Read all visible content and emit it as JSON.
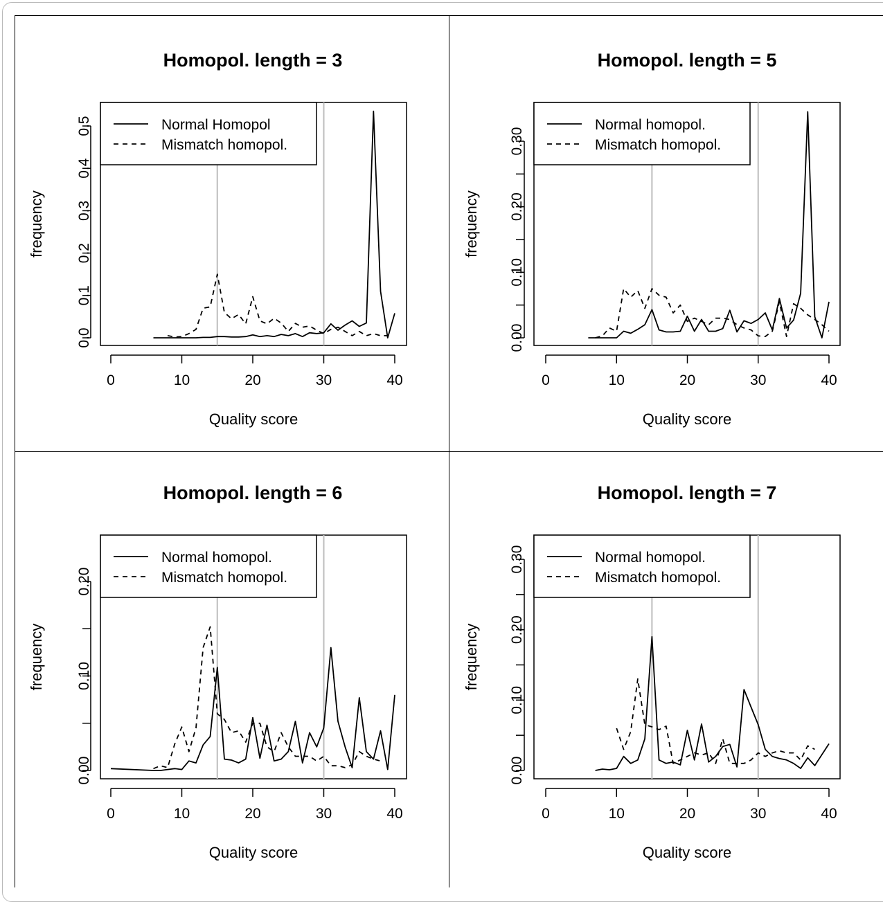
{
  "chart_data": [
    {
      "type": "line",
      "title": "Homopol. length = 3",
      "xlabel": "Quality score",
      "ylabel": "frequency",
      "xlim": [
        0,
        40
      ],
      "ylim": [
        0,
        0.55
      ],
      "xticks": [
        0,
        10,
        20,
        30,
        40
      ],
      "yticks": [
        0.0,
        0.1,
        0.2,
        0.3,
        0.4,
        0.5
      ],
      "ytick_labels": [
        "0.0",
        "0.1",
        "0.2",
        "0.3",
        "0.4",
        "0.5"
      ],
      "vlines": [
        15,
        30
      ],
      "legend_position": "top-left",
      "series": [
        {
          "name": "Normal Homopol",
          "style": "solid",
          "x": [
            6,
            7,
            8,
            9,
            10,
            11,
            12,
            13,
            14,
            15,
            16,
            17,
            18,
            19,
            20,
            21,
            22,
            23,
            24,
            25,
            26,
            27,
            28,
            29,
            30,
            31,
            32,
            33,
            34,
            35,
            36,
            37,
            38,
            39,
            40
          ],
          "y": [
            0,
            0,
            0,
            0,
            0,
            0,
            0,
            0.001,
            0.001,
            0.003,
            0.003,
            0.002,
            0.002,
            0.003,
            0.007,
            0.003,
            0.005,
            0.003,
            0.008,
            0.005,
            0.01,
            0.003,
            0.012,
            0.01,
            0.012,
            0.033,
            0.018,
            0.03,
            0.04,
            0.027,
            0.035,
            0.535,
            0.11,
            0.0,
            0.058
          ]
        },
        {
          "name": "Mismatch homopol.",
          "style": "dashed",
          "x": [
            8,
            9,
            10,
            11,
            12,
            13,
            14,
            15,
            16,
            17,
            18,
            19,
            20,
            21,
            22,
            23,
            24,
            25,
            26,
            27,
            28,
            29,
            30,
            31,
            32,
            33,
            34,
            35,
            36,
            37,
            38,
            39
          ],
          "y": [
            0.005,
            0.002,
            0.003,
            0.01,
            0.02,
            0.07,
            0.073,
            0.15,
            0.06,
            0.045,
            0.055,
            0.033,
            0.097,
            0.04,
            0.033,
            0.046,
            0.035,
            0.015,
            0.034,
            0.025,
            0.028,
            0.018,
            0.01,
            0.02,
            0.025,
            0.015,
            0.005,
            0.015,
            0.005,
            0.01,
            0.005,
            0.005
          ]
        }
      ]
    },
    {
      "type": "line",
      "title": "Homopol. length = 5",
      "xlabel": "Quality score",
      "ylabel": "frequency",
      "xlim": [
        0,
        40
      ],
      "ylim": [
        0,
        0.35
      ],
      "xticks": [
        0,
        10,
        20,
        30,
        40
      ],
      "yticks": [
        0.0,
        0.05,
        0.1,
        0.15,
        0.2,
        0.25,
        0.3
      ],
      "ytick_labels": [
        "0.00",
        "",
        "0.10",
        "",
        "0.20",
        "",
        "0.30"
      ],
      "vlines": [
        15,
        30
      ],
      "legend_position": "top-left",
      "series": [
        {
          "name": "Normal homopol.",
          "style": "solid",
          "x": [
            6,
            7,
            8,
            9,
            10,
            11,
            12,
            13,
            14,
            15,
            16,
            17,
            18,
            19,
            20,
            21,
            22,
            23,
            24,
            25,
            26,
            27,
            28,
            29,
            30,
            31,
            32,
            33,
            34,
            35,
            36,
            37,
            38,
            39,
            40
          ],
          "y": [
            0,
            0,
            0,
            0,
            0,
            0.01,
            0.007,
            0.013,
            0.02,
            0.043,
            0.012,
            0.009,
            0.009,
            0.01,
            0.033,
            0.01,
            0.028,
            0.01,
            0.01,
            0.014,
            0.042,
            0.009,
            0.026,
            0.022,
            0.028,
            0.038,
            0.012,
            0.06,
            0.015,
            0.027,
            0.068,
            0.345,
            0.032,
            0.0,
            0.055
          ]
        },
        {
          "name": "Mismatch homopol.",
          "style": "dashed",
          "x": [
            7,
            8,
            9,
            10,
            11,
            12,
            13,
            14,
            15,
            16,
            17,
            18,
            19,
            20,
            21,
            22,
            23,
            24,
            25,
            26,
            27,
            28,
            29,
            30,
            31,
            32,
            33,
            34,
            35,
            36,
            37,
            38,
            39,
            40
          ],
          "y": [
            0,
            0.003,
            0.015,
            0.01,
            0.075,
            0.062,
            0.072,
            0.045,
            0.075,
            0.065,
            0.062,
            0.038,
            0.05,
            0.025,
            0.03,
            0.025,
            0.02,
            0.03,
            0.03,
            0.028,
            0.02,
            0.015,
            0.012,
            0.003,
            0.002,
            0.01,
            0.055,
            0.002,
            0.052,
            0.045,
            0.035,
            0.028,
            0.02,
            0.01
          ]
        }
      ]
    },
    {
      "type": "line",
      "title": "Homopol. length = 6",
      "xlabel": "Quality score",
      "ylabel": "frequency",
      "xlim": [
        0,
        40
      ],
      "ylim": [
        0,
        0.25
      ],
      "xticks": [
        0,
        10,
        20,
        30,
        40
      ],
      "yticks": [
        0.0,
        0.05,
        0.1,
        0.15,
        0.2
      ],
      "ytick_labels": [
        "0.00",
        "",
        "0.10",
        "",
        "0.20"
      ],
      "vlines": [
        15,
        30
      ],
      "legend_position": "top-left",
      "series": [
        {
          "name": "Normal homopol.",
          "style": "solid",
          "x": [
            0,
            6,
            7,
            8,
            9,
            10,
            11,
            12,
            13,
            14,
            15,
            16,
            17,
            18,
            19,
            20,
            21,
            22,
            23,
            24,
            25,
            26,
            27,
            28,
            29,
            30,
            31,
            32,
            33,
            34,
            35,
            36,
            37,
            38,
            39,
            40
          ],
          "y": [
            0.002,
            0,
            0,
            0.001,
            0.002,
            0.001,
            0.01,
            0.008,
            0.027,
            0.036,
            0.109,
            0.012,
            0.011,
            0.008,
            0.012,
            0.056,
            0.013,
            0.048,
            0.01,
            0.012,
            0.02,
            0.052,
            0.008,
            0.04,
            0.025,
            0.045,
            0.13,
            0.052,
            0.025,
            0.003,
            0.077,
            0.02,
            0.012,
            0.042,
            0.001,
            0.08
          ]
        },
        {
          "name": "Mismatch homopol.",
          "style": "dashed",
          "x": [
            6,
            7,
            8,
            9,
            10,
            11,
            12,
            13,
            14,
            15,
            16,
            17,
            18,
            19,
            20,
            21,
            22,
            23,
            24,
            25,
            26,
            27,
            28,
            29,
            30,
            31,
            32,
            33,
            34,
            35,
            36,
            37,
            38
          ],
          "y": [
            0.002,
            0.005,
            0.003,
            0.028,
            0.046,
            0.02,
            0.045,
            0.13,
            0.152,
            0.06,
            0.054,
            0.04,
            0.042,
            0.03,
            0.05,
            0.05,
            0.025,
            0.02,
            0.04,
            0.025,
            0.015,
            0.015,
            0.015,
            0.01,
            0.015,
            0.005,
            0.005,
            0.003,
            0.006,
            0.02,
            0.015,
            0.012,
            0.01
          ]
        }
      ]
    },
    {
      "type": "line",
      "title": "Homopol. length = 7",
      "xlabel": "Quality score",
      "ylabel": "frequency",
      "xlim": [
        0,
        40
      ],
      "ylim": [
        0,
        0.33
      ],
      "xticks": [
        0,
        10,
        20,
        30,
        40
      ],
      "yticks": [
        0.0,
        0.05,
        0.1,
        0.15,
        0.2,
        0.25,
        0.3
      ],
      "ytick_labels": [
        "0.00",
        "",
        "0.10",
        "",
        "0.20",
        "",
        "0.30"
      ],
      "vlines": [
        15,
        30
      ],
      "legend_position": "top-left",
      "series": [
        {
          "name": "Normal homopol.",
          "style": "solid",
          "x": [
            7,
            8,
            9,
            10,
            11,
            12,
            13,
            14,
            15,
            16,
            17,
            18,
            19,
            20,
            21,
            22,
            23,
            24,
            25,
            26,
            27,
            28,
            29,
            30,
            31,
            32,
            33,
            34,
            35,
            36,
            37,
            38,
            40
          ],
          "y": [
            0.0,
            0.002,
            0.001,
            0.003,
            0.02,
            0.01,
            0.015,
            0.045,
            0.19,
            0.015,
            0.01,
            0.012,
            0.008,
            0.057,
            0.015,
            0.066,
            0.012,
            0.02,
            0.034,
            0.037,
            0.005,
            0.115,
            0.09,
            0.065,
            0.03,
            0.02,
            0.017,
            0.015,
            0.01,
            0.003,
            0.018,
            0.007,
            0.038
          ]
        },
        {
          "name": "Mismatch homopol.",
          "style": "dashed",
          "x": [
            10,
            11,
            12,
            13,
            14,
            15,
            16,
            17,
            18,
            19,
            20,
            21,
            22,
            23,
            24,
            25,
            26,
            27,
            28,
            29,
            30,
            31,
            32,
            33,
            34,
            35,
            36,
            37,
            38
          ],
          "y": [
            0.06,
            0.03,
            0.055,
            0.13,
            0.065,
            0.062,
            0.058,
            0.063,
            0.01,
            0.015,
            0.02,
            0.025,
            0.022,
            0.025,
            0.01,
            0.045,
            0.01,
            0.01,
            0.01,
            0.015,
            0.025,
            0.02,
            0.025,
            0.028,
            0.025,
            0.025,
            0.015,
            0.035,
            0.03
          ]
        }
      ]
    }
  ]
}
